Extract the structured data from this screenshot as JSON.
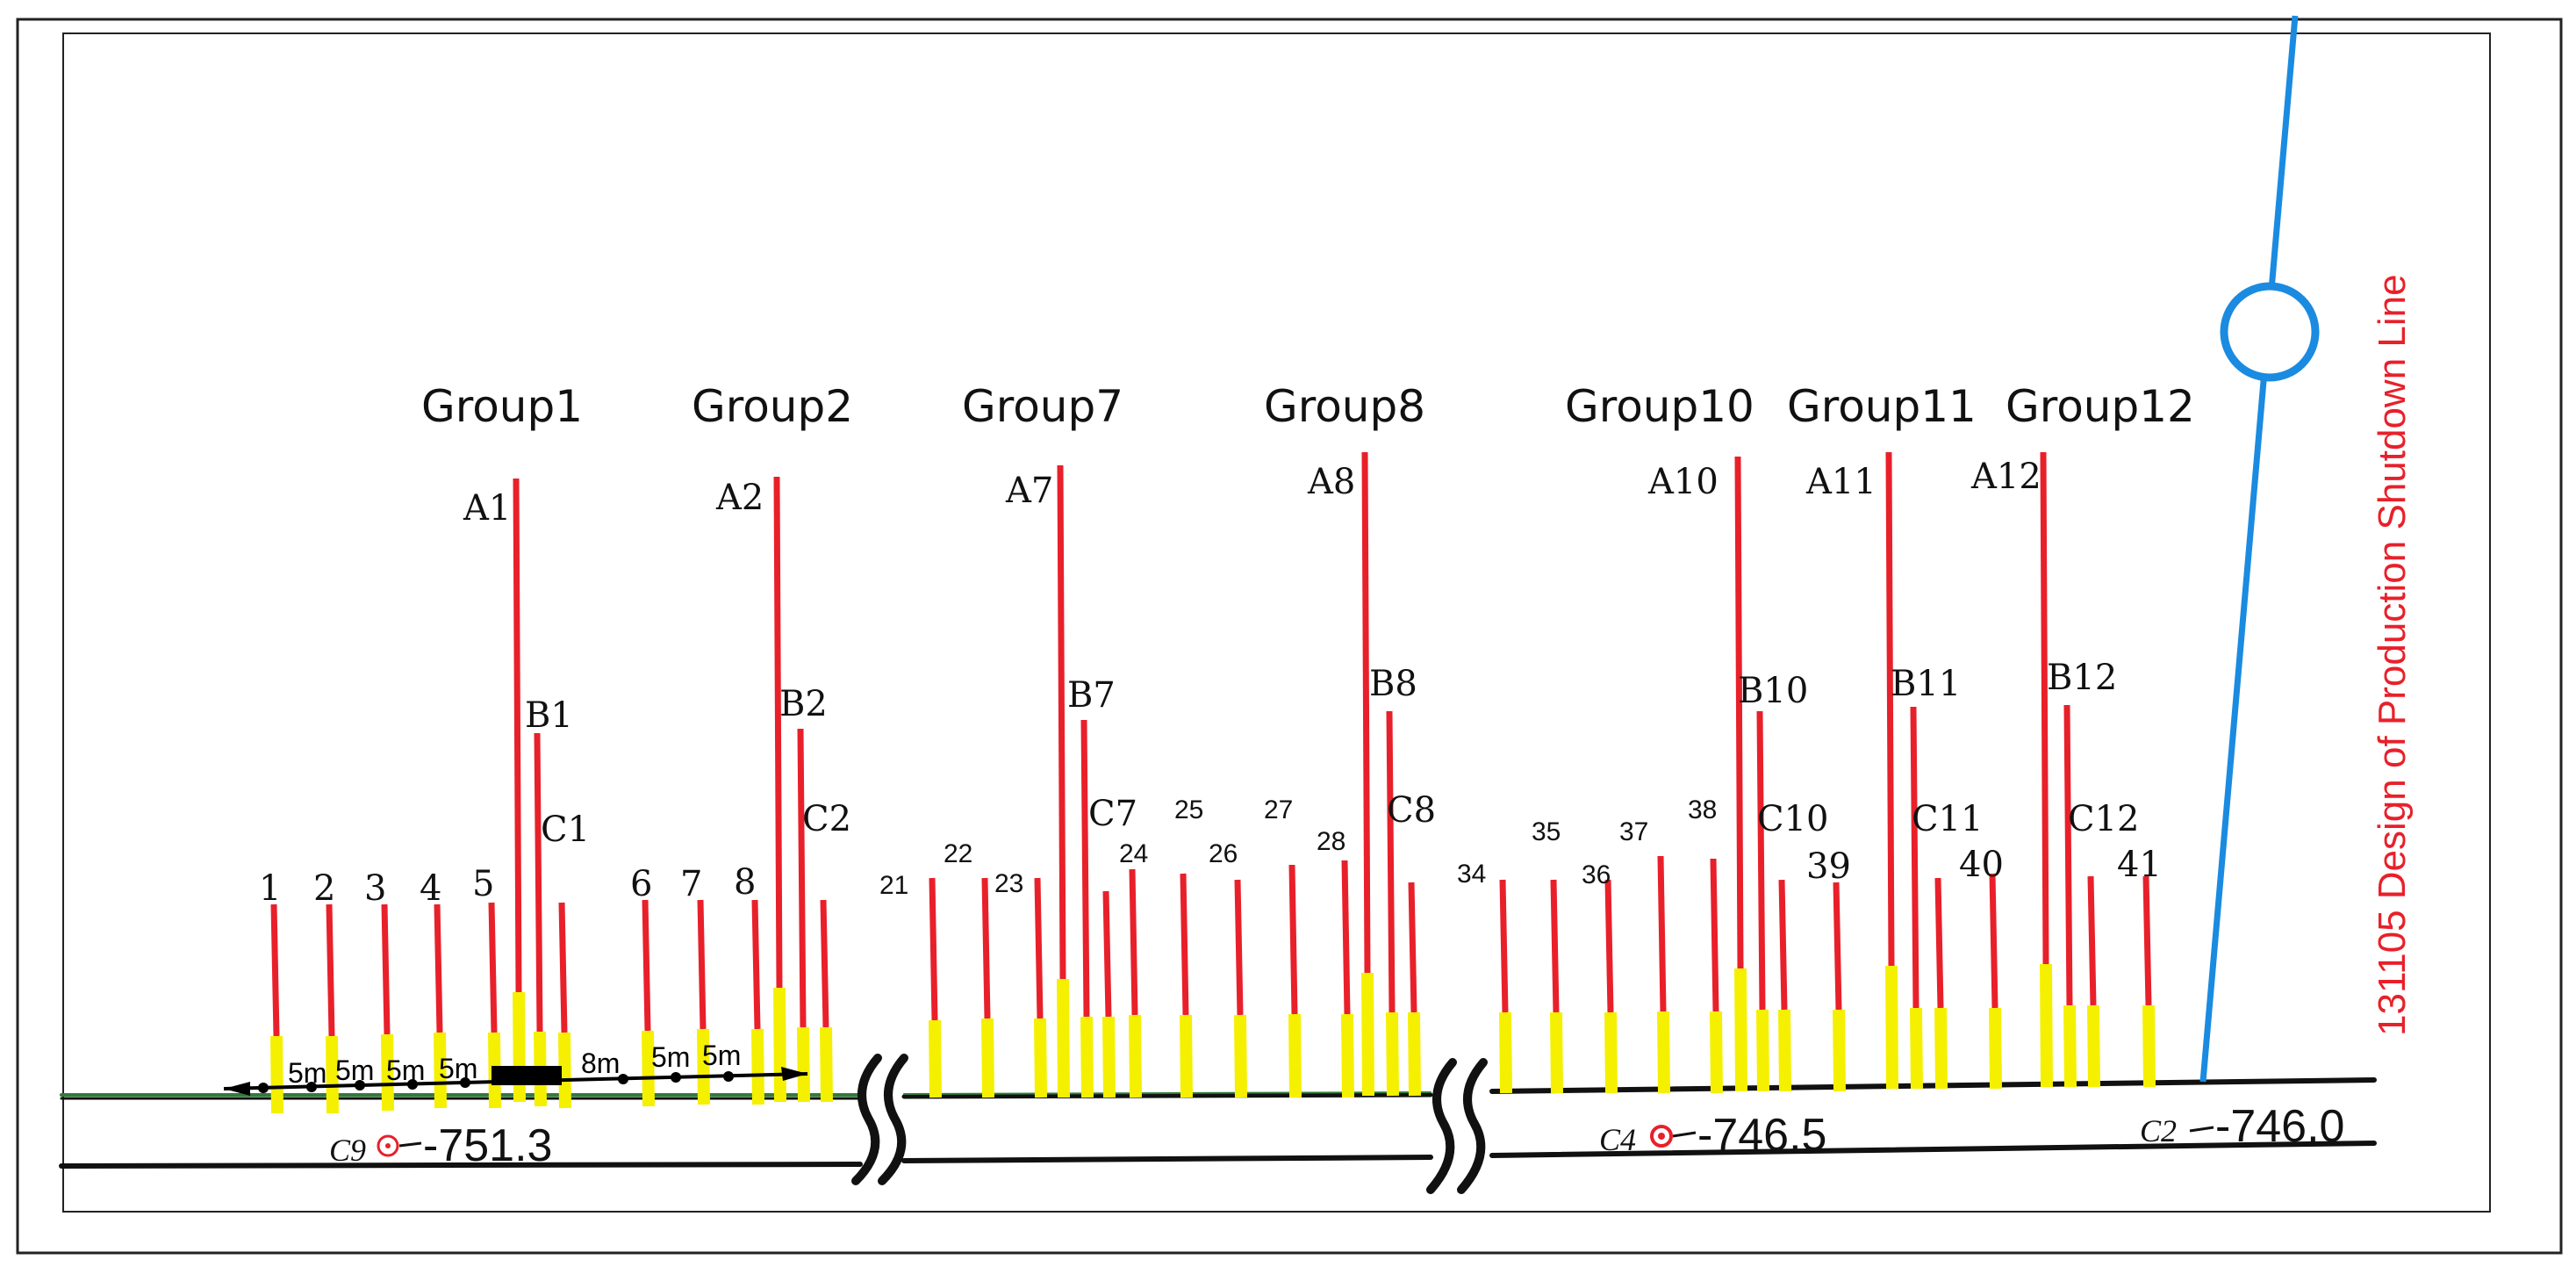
{
  "groups": [
    "Group1",
    "Group2",
    "Group7",
    "Group8",
    "Group10",
    "Group11",
    "Group12"
  ],
  "long_holes": [
    "A1",
    "A2",
    "A7",
    "A8",
    "A10",
    "A11",
    "A12"
  ],
  "mid_holes": [
    "B1",
    "B2",
    "B7",
    "B8",
    "B10",
    "B11",
    "B12"
  ],
  "short_holes": [
    "C1",
    "C2",
    "C7",
    "C8",
    "C10",
    "C11",
    "C12"
  ],
  "numbered_holes": [
    "1",
    "2",
    "3",
    "4",
    "5",
    "6",
    "7",
    "8",
    "21",
    "22",
    "23",
    "24",
    "25",
    "26",
    "27",
    "28",
    "34",
    "35",
    "36",
    "37",
    "38",
    "39",
    "40",
    "41"
  ],
  "spacing_labels": [
    "5m",
    "5m",
    "5m",
    "5m",
    "8m",
    "5m",
    "5m"
  ],
  "stations": [
    {
      "name": "C9",
      "elevation": "-751.3"
    },
    {
      "name": "C4",
      "elevation": "-746.5"
    },
    {
      "name": "C2",
      "elevation": "-746.0"
    }
  ],
  "shutdown_line_label": "131105 Design of Production Shutdown Line",
  "colors": {
    "hole_red": "#e8202a",
    "hole_yellow": "#f5f000",
    "shutdown_blue": "#1a8be0",
    "ground_green": "#2f7d3a",
    "line_black": "#111111"
  }
}
